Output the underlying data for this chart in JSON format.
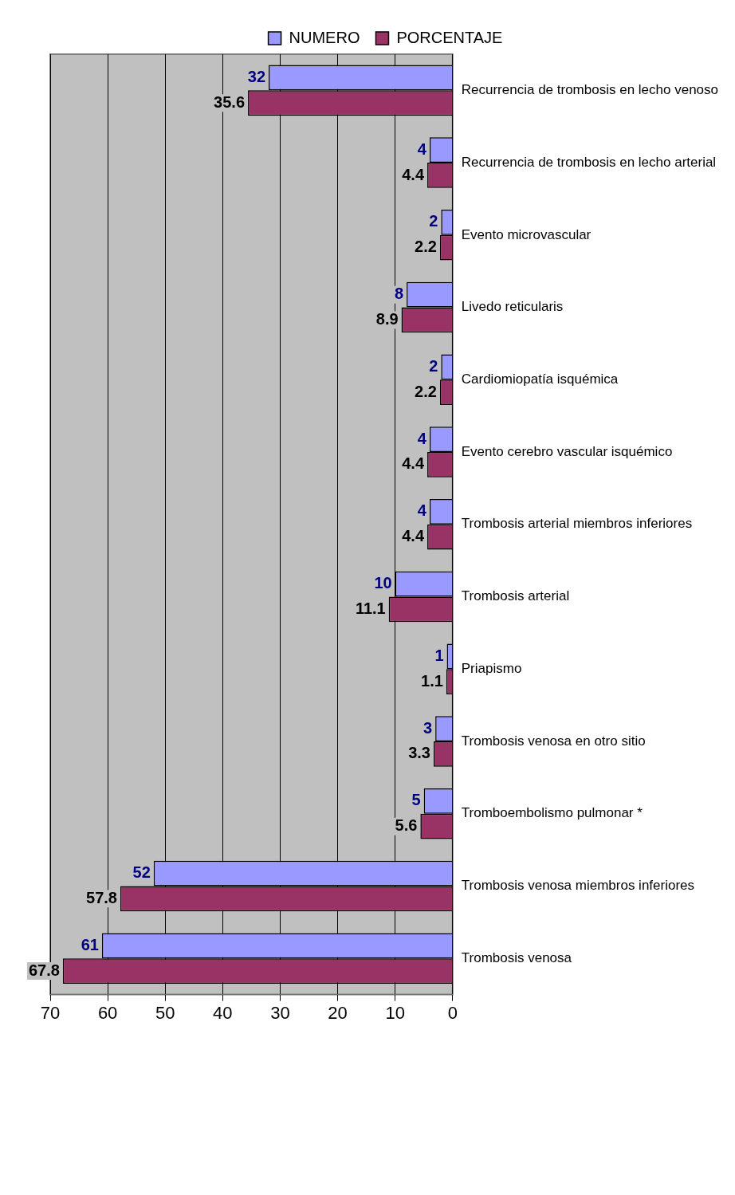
{
  "chart_data": {
    "type": "bar",
    "orientation": "horizontal",
    "categories": [
      "Recurrencia de trombosis en lecho venoso",
      "Recurrencia de trombosis en lecho arterial",
      "Evento microvascular",
      "Livedo reticularis",
      "Cardiomiopatía isquémica",
      "Evento cerebro vascular isquémico",
      "Trombosis arterial miembros inferiores",
      "Trombosis arterial",
      "Priapismo",
      "Trombosis venosa en otro sitio",
      "Tromboembolismo pulmonar *",
      "Trombosis venosa miembros inferiores",
      "Trombosis venosa"
    ],
    "series": [
      {
        "name": "NUMERO",
        "color": "#9999ff",
        "values": [
          32,
          4,
          2,
          8,
          2,
          4,
          4,
          10,
          1,
          3,
          5,
          52,
          61
        ]
      },
      {
        "name": "PORCENTAJE",
        "color": "#993366",
        "values": [
          35.6,
          4.4,
          2.2,
          8.9,
          2.2,
          4.4,
          4.4,
          11.1,
          1.1,
          3.3,
          5.6,
          57.8,
          67.8
        ]
      }
    ],
    "xlim": [
      70,
      0
    ],
    "xticks": [
      70,
      60,
      50,
      40,
      30,
      20,
      10,
      0
    ],
    "grid": "x",
    "legend": "top",
    "data_labels": true
  }
}
